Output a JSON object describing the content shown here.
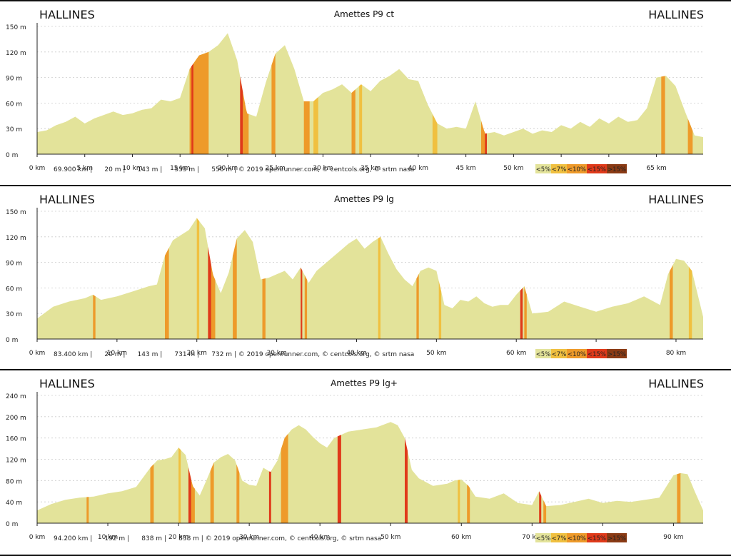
{
  "legend": [
    {
      "label": "<5%",
      "color": "#e3e39a"
    },
    {
      "label": "<7%",
      "color": "#f0c040"
    },
    {
      "label": "<10%",
      "color": "#ee9a2a"
    },
    {
      "label": "<15%",
      "color": "#e03a1a"
    },
    {
      "label": ">15%",
      "color": "#8a3a14"
    }
  ],
  "colors": {
    "fill": "#e3e39a",
    "axis": "#222222",
    "grid": "#cccccc"
  },
  "chart_data": [
    {
      "type": "area",
      "title": "Amettes P9 ct",
      "start_label": "HALLINES",
      "end_label": "HALLINES",
      "xlabel": "",
      "ylabel": "",
      "xlim": [
        0,
        69.9
      ],
      "ylim": [
        0,
        150
      ],
      "y_ticks": [
        "0 m",
        "30 m",
        "60 m",
        "90 m",
        "120 m",
        "150 m"
      ],
      "x_ticks": [
        "0 km",
        "5 km",
        "10 km",
        "15 km",
        "20 km",
        "25 km",
        "30 km",
        "35 km",
        "40 km",
        "45 km",
        "50 km",
        "55 km",
        "60 km",
        "65 km"
      ],
      "x_tick_values": [
        0,
        5,
        10,
        15,
        20,
        25,
        30,
        35,
        40,
        45,
        50,
        55,
        60,
        65
      ],
      "footer": "69.900 km |      20 m |      143 m |      555 m |      556 m | © 2019 openrunner.com, © centcols.org, © srtm nasa",
      "x": [
        0,
        1,
        2,
        3,
        4,
        5,
        6,
        7,
        8,
        9,
        10,
        11,
        12,
        13,
        14,
        15,
        16,
        17,
        18,
        19,
        20,
        21,
        22,
        23,
        24,
        25,
        26,
        27,
        28,
        29,
        30,
        31,
        32,
        33,
        34,
        35,
        36,
        37,
        38,
        39,
        40,
        41,
        42,
        43,
        44,
        45,
        46,
        47,
        48,
        49,
        50,
        51,
        52,
        53,
        54,
        55,
        56,
        57,
        58,
        59,
        60,
        61,
        62,
        63,
        64,
        65,
        66,
        67,
        68,
        69,
        69.9
      ],
      "y": [
        26,
        28,
        34,
        38,
        44,
        36,
        42,
        46,
        50,
        46,
        48,
        52,
        54,
        64,
        62,
        66,
        100,
        116,
        120,
        128,
        142,
        110,
        48,
        44,
        84,
        118,
        128,
        100,
        62,
        62,
        72,
        76,
        82,
        72,
        82,
        74,
        86,
        92,
        100,
        88,
        86,
        58,
        36,
        30,
        32,
        30,
        62,
        24,
        26,
        22,
        26,
        30,
        24,
        28,
        26,
        34,
        30,
        38,
        32,
        42,
        36,
        44,
        38,
        40,
        54,
        90,
        92,
        80,
        50,
        22,
        20
      ],
      "steep": [
        [
          16,
          18,
          "#ee9a2a"
        ],
        [
          16.2,
          16.4,
          "#e03a1a"
        ],
        [
          21.3,
          21.6,
          "#e03a1a"
        ],
        [
          21.6,
          22.2,
          "#ee9a2a"
        ],
        [
          24.6,
          25,
          "#ee9a2a"
        ],
        [
          28,
          28.6,
          "#ee9a2a"
        ],
        [
          29,
          29.5,
          "#f0c040"
        ],
        [
          33,
          33.4,
          "#ee9a2a"
        ],
        [
          33.8,
          34.1,
          "#f0c040"
        ],
        [
          41.5,
          42,
          "#f0c040"
        ],
        [
          46.6,
          47.2,
          "#ee9a2a"
        ],
        [
          47,
          47.2,
          "#e03a1a"
        ],
        [
          65.5,
          65.9,
          "#ee9a2a"
        ],
        [
          68.3,
          68.8,
          "#ee9a2a"
        ]
      ]
    },
    {
      "type": "area",
      "title": "Amettes P9 lg",
      "start_label": "HALLINES",
      "end_label": "HALLINES",
      "xlabel": "",
      "ylabel": "",
      "xlim": [
        0,
        83.4
      ],
      "ylim": [
        0,
        150
      ],
      "y_ticks": [
        "0 m",
        "30 m",
        "60 m",
        "90 m",
        "120 m",
        "150 m"
      ],
      "x_ticks": [
        "0 km",
        "10 km",
        "20 km",
        "30 km",
        "40 km",
        "50 km",
        "60 km",
        "70 km",
        "80 km"
      ],
      "x_tick_values": [
        0,
        10,
        20,
        30,
        40,
        50,
        60,
        70,
        80
      ],
      "footer": "83.400 km |      20 m |      143 m |      731 m |      732 m | © 2019 openrunner.com, © centcols.org, © srtm nasa",
      "x": [
        0,
        2,
        4,
        6,
        7,
        8,
        10,
        12,
        14,
        15,
        16,
        17,
        18,
        19,
        20,
        21,
        22,
        23,
        24,
        25,
        26,
        27,
        28,
        29,
        30,
        31,
        32,
        33,
        34,
        35,
        36,
        37,
        38,
        39,
        40,
        41,
        42,
        43,
        44,
        45,
        46,
        47,
        48,
        49,
        50,
        51,
        52,
        53,
        54,
        55,
        56,
        57,
        58,
        59,
        60,
        61,
        62,
        64,
        66,
        68,
        70,
        72,
        74,
        76,
        78,
        79,
        80,
        81,
        82,
        83.4
      ],
      "y": [
        24,
        38,
        44,
        48,
        52,
        46,
        50,
        56,
        62,
        64,
        98,
        116,
        122,
        128,
        142,
        130,
        76,
        54,
        78,
        118,
        128,
        114,
        70,
        72,
        76,
        80,
        70,
        84,
        66,
        80,
        88,
        96,
        104,
        112,
        118,
        106,
        114,
        120,
        100,
        82,
        70,
        62,
        80,
        84,
        80,
        40,
        36,
        46,
        44,
        50,
        42,
        38,
        40,
        40,
        52,
        62,
        30,
        32,
        44,
        38,
        32,
        38,
        42,
        50,
        40,
        76,
        94,
        92,
        80,
        26
      ],
      "steep": [
        [
          16,
          16.5,
          "#ee9a2a"
        ],
        [
          7,
          7.3,
          "#ee9a2a"
        ],
        [
          20,
          20.3,
          "#f0c040"
        ],
        [
          21.4,
          21.8,
          "#e03a1a"
        ],
        [
          21.8,
          22.3,
          "#ee9a2a"
        ],
        [
          24.5,
          25,
          "#ee9a2a"
        ],
        [
          28.2,
          28.6,
          "#ee9a2a"
        ],
        [
          33,
          33.2,
          "#e03a1a"
        ],
        [
          33.5,
          33.8,
          "#ee9a2a"
        ],
        [
          42.7,
          43,
          "#f0c040"
        ],
        [
          47.5,
          47.8,
          "#ee9a2a"
        ],
        [
          50.3,
          50.6,
          "#f0c040"
        ],
        [
          60.5,
          60.8,
          "#e03a1a"
        ],
        [
          61,
          61.3,
          "#ee9a2a"
        ],
        [
          79.2,
          79.6,
          "#ee9a2a"
        ],
        [
          81.6,
          82,
          "#f0c040"
        ]
      ]
    },
    {
      "type": "area",
      "title": "Amettes P9 lg+",
      "start_label": "HALLINES",
      "end_label": "HALLINES",
      "xlabel": "",
      "ylabel": "",
      "xlim": [
        0,
        94.2
      ],
      "ylim": [
        0,
        240
      ],
      "y_ticks": [
        "0 m",
        "40 m",
        "80 m",
        "120 m",
        "160 m",
        "200 m",
        "240 m"
      ],
      "x_ticks": [
        "0 km",
        "10 km",
        "20 km",
        "30 km",
        "40 km",
        "50 km",
        "60 km",
        "70 km",
        "80 km",
        "90 km"
      ],
      "x_tick_values": [
        0,
        10,
        20,
        30,
        40,
        50,
        60,
        70,
        80,
        90
      ],
      "footer": "94.200 km |      192 m |      838 m |      838 m | © 2019 openrunner.com, © centcols.org, © srtm nasa",
      "x": [
        0,
        2,
        4,
        6,
        8,
        10,
        12,
        14,
        16,
        17,
        18,
        19,
        20,
        21,
        22,
        23,
        24,
        25,
        26,
        27,
        28,
        29,
        30,
        31,
        32,
        33,
        34,
        35,
        36,
        37,
        38,
        39,
        40,
        41,
        42,
        43,
        44,
        46,
        48,
        50,
        51,
        52,
        53,
        54,
        56,
        58,
        59,
        60,
        61,
        62,
        64,
        66,
        68,
        70,
        71,
        72,
        74,
        76,
        78,
        80,
        82,
        84,
        86,
        88,
        90,
        91,
        92,
        93,
        94.2
      ],
      "y": [
        24,
        36,
        44,
        48,
        50,
        56,
        60,
        68,
        104,
        118,
        120,
        124,
        142,
        128,
        70,
        52,
        82,
        114,
        124,
        130,
        118,
        80,
        72,
        70,
        104,
        96,
        118,
        160,
        176,
        184,
        176,
        162,
        150,
        142,
        160,
        166,
        172,
        176,
        180,
        190,
        184,
        160,
        100,
        84,
        70,
        74,
        80,
        82,
        70,
        50,
        46,
        56,
        38,
        34,
        60,
        32,
        34,
        40,
        46,
        38,
        42,
        40,
        44,
        48,
        90,
        94,
        92,
        60,
        24
      ],
      "steep": [
        [
          7,
          7.3,
          "#ee9a2a"
        ],
        [
          16,
          16.5,
          "#ee9a2a"
        ],
        [
          20,
          20.3,
          "#f0c040"
        ],
        [
          21.4,
          21.8,
          "#e03a1a"
        ],
        [
          21.8,
          22.3,
          "#ee9a2a"
        ],
        [
          24.5,
          25,
          "#ee9a2a"
        ],
        [
          28.2,
          28.6,
          "#ee9a2a"
        ],
        [
          32.8,
          33.1,
          "#e03a1a"
        ],
        [
          34.5,
          35.5,
          "#ee9a2a"
        ],
        [
          42.5,
          43,
          "#e03a1a"
        ],
        [
          52,
          52.4,
          "#e03a1a"
        ],
        [
          59.5,
          59.8,
          "#f0c040"
        ],
        [
          60.8,
          61.2,
          "#ee9a2a"
        ],
        [
          71,
          71.3,
          "#e03a1a"
        ],
        [
          71.6,
          72,
          "#ee9a2a"
        ],
        [
          90.5,
          91,
          "#ee9a2a"
        ]
      ]
    }
  ]
}
